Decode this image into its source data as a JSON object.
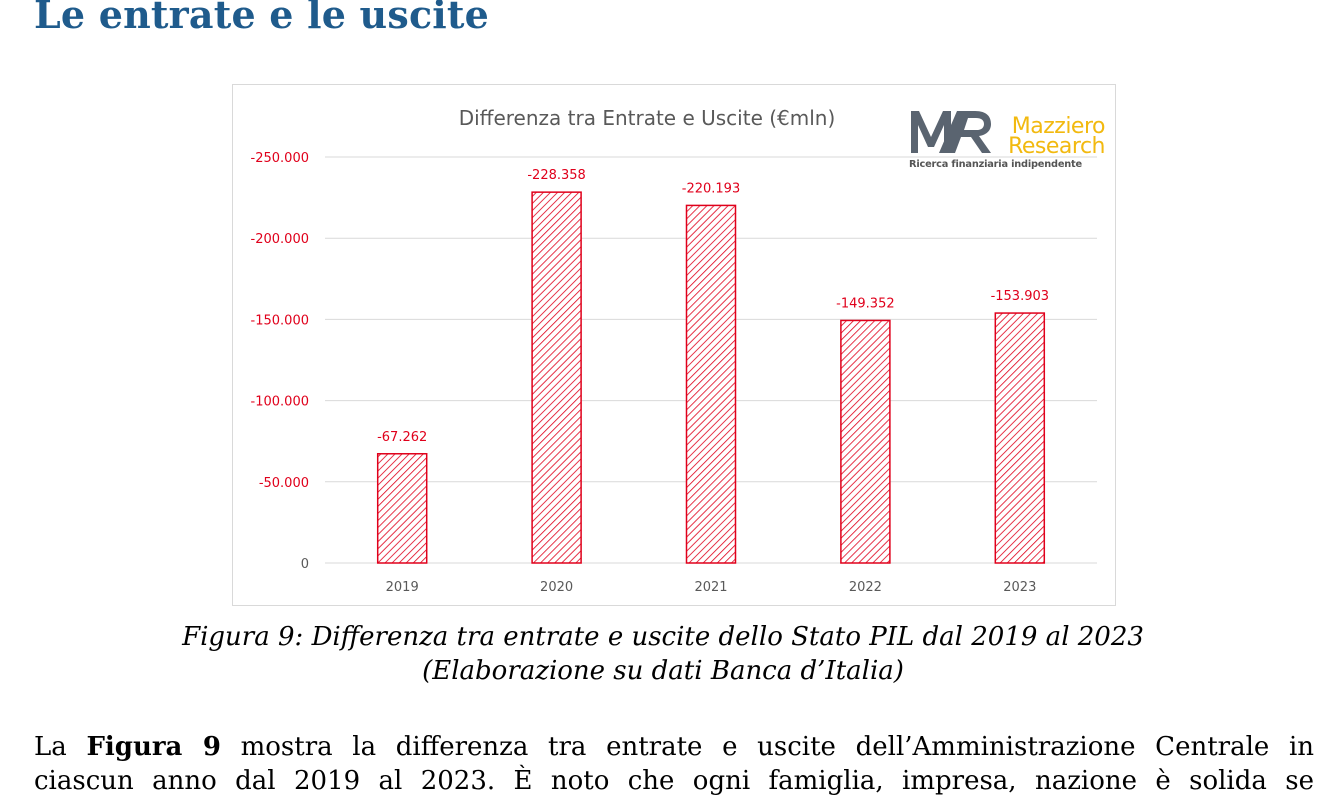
{
  "heading": "Le entrate e le uscite",
  "logo": {
    "name_line1": "Mazziero",
    "name_line2": "Research",
    "tagline": "Ricerca finanziaria indipendente",
    "colors": {
      "mark": "#5a6470",
      "accent": "#f2b90f"
    }
  },
  "chart_data": {
    "type": "bar",
    "title": "Differenza tra Entrate e Uscite (€mln)",
    "categories": [
      "2019",
      "2020",
      "2021",
      "2022",
      "2023"
    ],
    "values": [
      -67262,
      -228358,
      -220193,
      -149352,
      -153903
    ],
    "data_labels": [
      "-67.262",
      "-228.358",
      "-220.193",
      "-149.352",
      "-153.903"
    ],
    "y_ticks": [
      0,
      -50000,
      -100000,
      -150000,
      -200000,
      -250000
    ],
    "y_tick_labels": [
      "0",
      "-50.000",
      "-100.000",
      "-150.000",
      "-200.000",
      "-250.000"
    ],
    "ylim": [
      0,
      -250000
    ],
    "y_axis_reversed": true,
    "grid": true,
    "bar_style": "red diagonal hatch",
    "colors": {
      "bar": "#e0001b",
      "label": "#e0001b",
      "tick": "#595959"
    }
  },
  "caption": {
    "line1": "Figura 9: Differenza tra entrate e uscite dello Stato PIL dal 2019 al 2023",
    "line2": "(Elaborazione su dati Banca d’Italia)"
  },
  "paragraph": {
    "prefix": "La ",
    "bold": "Figura 9",
    "line1_rest": " mostra la differenza tra entrate e uscite dell’Amministrazione Centrale in",
    "line2": "ciascun anno dal 2019 al 2023. È noto che ogni famiglia, impresa, nazione è solida se"
  }
}
